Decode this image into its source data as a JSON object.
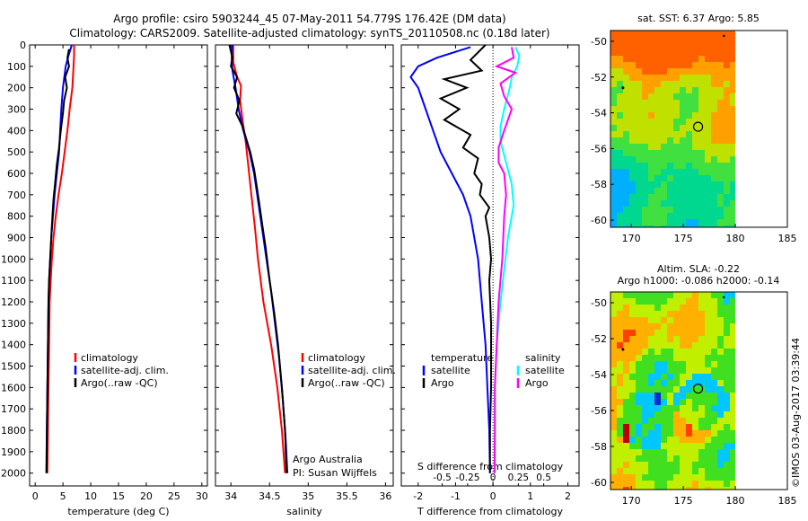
{
  "header": {
    "line1": "Argo profile: csiro 5903244_45 07-May-2011 54.779S 176.42E (DM data)",
    "line2": "Climatology: CARS2009. Satellite-adjusted climatology: synTS_20110508.nc (0.18d later)"
  },
  "credits": {
    "line1": "Argo Australia",
    "line2": "PI: Susan Wijffels",
    "stamp": "©IMOS 03-Aug-2017 03:39:44"
  },
  "chart_data": [
    {
      "type": "line",
      "xlabel": "temperature (deg C)",
      "ylabel": "",
      "xlim": [
        -1,
        31
      ],
      "ylim": [
        2060,
        0
      ],
      "y_reversed": true,
      "xticks": [
        0,
        5,
        10,
        15,
        20,
        25,
        30
      ],
      "yticks": [
        0,
        100,
        200,
        300,
        400,
        500,
        600,
        700,
        800,
        900,
        1000,
        1100,
        1200,
        1300,
        1400,
        1500,
        1600,
        1700,
        1800,
        1900,
        2000
      ],
      "legend": {
        "placement": "bottom-center",
        "entries": [
          {
            "label": "climatology",
            "color": "#ff0000"
          },
          {
            "label": "satellite-adj. clim.",
            "color": "#0000ff"
          },
          {
            "label": "Argo(..raw -QC)",
            "color": "#000000"
          }
        ]
      },
      "series": [
        {
          "color": "#ff0000",
          "points": [
            [
              7.0,
              0
            ],
            [
              7.0,
              50
            ],
            [
              6.9,
              100
            ],
            [
              6.7,
              200
            ],
            [
              6.2,
              300
            ],
            [
              5.8,
              400
            ],
            [
              5.3,
              500
            ],
            [
              4.8,
              600
            ],
            [
              4.2,
              700
            ],
            [
              3.7,
              800
            ],
            [
              3.3,
              900
            ],
            [
              3.0,
              1000
            ],
            [
              2.8,
              1100
            ],
            [
              2.6,
              1200
            ],
            [
              2.5,
              1400
            ],
            [
              2.4,
              1600
            ],
            [
              2.3,
              1800
            ],
            [
              2.2,
              2000
            ]
          ]
        },
        {
          "color": "#0000ff",
          "points": [
            [
              6.6,
              0
            ],
            [
              6.0,
              50
            ],
            [
              5.5,
              100
            ],
            [
              5.0,
              200
            ],
            [
              4.7,
              300
            ],
            [
              4.5,
              400
            ],
            [
              4.3,
              500
            ],
            [
              3.9,
              600
            ],
            [
              3.5,
              700
            ],
            [
              3.2,
              800
            ],
            [
              2.9,
              900
            ],
            [
              2.7,
              1000
            ],
            [
              2.5,
              1100
            ],
            [
              2.4,
              1200
            ],
            [
              2.3,
              1400
            ],
            [
              2.2,
              1600
            ],
            [
              2.1,
              1800
            ],
            [
              2.0,
              2000
            ]
          ]
        },
        {
          "color": "#000000",
          "points": [
            [
              6.1,
              20
            ],
            [
              5.8,
              60
            ],
            [
              6.1,
              100
            ],
            [
              5.4,
              150
            ],
            [
              5.7,
              200
            ],
            [
              5.2,
              260
            ],
            [
              5.0,
              320
            ],
            [
              4.6,
              400
            ],
            [
              4.3,
              480
            ],
            [
              3.9,
              560
            ],
            [
              3.6,
              640
            ],
            [
              3.3,
              720
            ],
            [
              3.1,
              800
            ],
            [
              2.9,
              900
            ],
            [
              2.7,
              1000
            ],
            [
              2.5,
              1100
            ],
            [
              2.4,
              1200
            ],
            [
              2.3,
              1400
            ],
            [
              2.2,
              1600
            ],
            [
              2.1,
              1800
            ],
            [
              2.05,
              2000
            ]
          ]
        }
      ]
    },
    {
      "type": "line",
      "xlabel": "salinity",
      "ylabel": "",
      "xlim": [
        33.8,
        36.1
      ],
      "ylim": [
        2060,
        0
      ],
      "y_reversed": true,
      "xticks": [
        34,
        34.5,
        35,
        35.5,
        36
      ],
      "xtick_labels": [
        "34",
        "34.5",
        "35",
        "35.5",
        "36"
      ],
      "legend": {
        "placement": "bottom-right",
        "entries": [
          {
            "label": "climatology",
            "color": "#ff0000"
          },
          {
            "label": "satellite-adj. clim.",
            "color": "#0000ff"
          },
          {
            "label": "Argo(..raw -QC)",
            "color": "#000000"
          }
        ]
      },
      "series": [
        {
          "color": "#ff0000",
          "points": [
            [
              34.03,
              0
            ],
            [
              34.03,
              80
            ],
            [
              34.08,
              150
            ],
            [
              34.13,
              190
            ],
            [
              34.12,
              260
            ],
            [
              34.15,
              350
            ],
            [
              34.19,
              450
            ],
            [
              34.22,
              550
            ],
            [
              34.25,
              650
            ],
            [
              34.28,
              750
            ],
            [
              34.31,
              850
            ],
            [
              34.35,
              1000
            ],
            [
              34.42,
              1200
            ],
            [
              34.52,
              1400
            ],
            [
              34.6,
              1600
            ],
            [
              34.66,
              1800
            ],
            [
              34.7,
              2000
            ]
          ]
        },
        {
          "color": "#0000ff",
          "points": [
            [
              34.02,
              0
            ],
            [
              34.01,
              60
            ],
            [
              34.02,
              120
            ],
            [
              34.06,
              200
            ],
            [
              34.1,
              300
            ],
            [
              34.16,
              400
            ],
            [
              34.24,
              500
            ],
            [
              34.3,
              600
            ],
            [
              34.34,
              700
            ],
            [
              34.38,
              800
            ],
            [
              34.42,
              900
            ],
            [
              34.46,
              1000
            ],
            [
              34.52,
              1150
            ],
            [
              34.57,
              1300
            ],
            [
              34.62,
              1450
            ],
            [
              34.67,
              1650
            ],
            [
              34.71,
              1850
            ],
            [
              34.73,
              2000
            ]
          ]
        },
        {
          "color": "#000000",
          "points": [
            [
              33.98,
              0
            ],
            [
              34.02,
              60
            ],
            [
              34.0,
              100
            ],
            [
              34.08,
              150
            ],
            [
              34.04,
              200
            ],
            [
              34.11,
              260
            ],
            [
              34.07,
              320
            ],
            [
              34.15,
              380
            ],
            [
              34.2,
              440
            ],
            [
              34.25,
              500
            ],
            [
              34.3,
              580
            ],
            [
              34.33,
              650
            ],
            [
              34.37,
              750
            ],
            [
              34.41,
              850
            ],
            [
              34.45,
              950
            ],
            [
              34.5,
              1100
            ],
            [
              34.56,
              1250
            ],
            [
              34.61,
              1400
            ],
            [
              34.66,
              1600
            ],
            [
              34.7,
              1800
            ],
            [
              34.72,
              2000
            ]
          ]
        }
      ]
    },
    {
      "type": "line",
      "xlabel": "T difference from climatology",
      "top_label": "S difference from climatology",
      "xlim": [
        -2.45,
        2.3
      ],
      "ylim": [
        2060,
        0
      ],
      "y_reversed": true,
      "xticks": [
        -2,
        -1,
        0,
        1,
        2
      ],
      "top_ticks": [
        -0.5,
        -0.25,
        0,
        0.25,
        0.5
      ],
      "top_tick_labels": [
        "-0.5",
        "-0.25",
        "0",
        "0.25",
        "0.5"
      ],
      "zero_line": "dotted",
      "legend": {
        "placement": "bottom",
        "groups": [
          {
            "title": "temperature",
            "entries": [
              {
                "label": "satellite",
                "color": "#0000ff"
              },
              {
                "label": "Argo",
                "color": "#000000"
              }
            ]
          },
          {
            "title": "salinity",
            "entries": [
              {
                "label": "satellite",
                "color": "#00ffff"
              },
              {
                "label": "Argo",
                "color": "#ff00ff"
              }
            ]
          }
        ]
      },
      "series": [
        {
          "color": "#0000ff",
          "points": [
            [
              -0.6,
              10
            ],
            [
              -1.5,
              60
            ],
            [
              -2.0,
              100
            ],
            [
              -2.2,
              150
            ],
            [
              -2.0,
              200
            ],
            [
              -1.8,
              300
            ],
            [
              -1.6,
              400
            ],
            [
              -1.4,
              500
            ],
            [
              -1.1,
              600
            ],
            [
              -0.8,
              700
            ],
            [
              -0.6,
              800
            ],
            [
              -0.5,
              900
            ],
            [
              -0.4,
              1000
            ],
            [
              -0.3,
              1200
            ],
            [
              -0.2,
              1400
            ],
            [
              -0.15,
              1600
            ],
            [
              -0.1,
              1800
            ],
            [
              -0.08,
              2000
            ]
          ]
        },
        {
          "color": "#000000",
          "points": [
            [
              -0.2,
              0
            ],
            [
              -0.6,
              70
            ],
            [
              -0.3,
              120
            ],
            [
              -1.3,
              160
            ],
            [
              -0.7,
              200
            ],
            [
              -1.4,
              250
            ],
            [
              -0.9,
              300
            ],
            [
              -1.3,
              350
            ],
            [
              -0.6,
              420
            ],
            [
              -0.8,
              480
            ],
            [
              -0.4,
              530
            ],
            [
              -0.5,
              600
            ],
            [
              -0.3,
              650
            ],
            [
              -0.35,
              700
            ],
            [
              -0.1,
              760
            ],
            [
              -0.2,
              800
            ],
            [
              -0.1,
              900
            ],
            [
              -0.05,
              1000
            ],
            [
              -0.1,
              1100
            ],
            [
              -0.05,
              1300
            ],
            [
              -0.05,
              1600
            ],
            [
              -0.08,
              1800
            ],
            [
              -0.08,
              2000
            ]
          ]
        },
        {
          "color": "#00ffff",
          "points": [
            [
              0.6,
              10
            ],
            [
              0.7,
              50
            ],
            [
              0.65,
              100
            ],
            [
              0.5,
              150
            ],
            [
              0.45,
              200
            ],
            [
              0.3,
              300
            ],
            [
              0.2,
              380
            ],
            [
              0.2,
              450
            ],
            [
              0.35,
              550
            ],
            [
              0.5,
              650
            ],
            [
              0.55,
              750
            ],
            [
              0.4,
              900
            ],
            [
              0.3,
              1050
            ],
            [
              0.2,
              1200
            ],
            [
              0.1,
              1400
            ],
            [
              0.05,
              1600
            ],
            [
              0.05,
              1800
            ],
            [
              0.05,
              2000
            ]
          ]
        },
        {
          "color": "#ff00ff",
          "points": [
            [
              0.5,
              10
            ],
            [
              0.55,
              60
            ],
            [
              0.1,
              100
            ],
            [
              0.6,
              130
            ],
            [
              0.2,
              180
            ],
            [
              0.3,
              240
            ],
            [
              0.5,
              300
            ],
            [
              0.4,
              350
            ],
            [
              0.3,
              400
            ],
            [
              0.15,
              480
            ],
            [
              0.15,
              550
            ],
            [
              0.3,
              600
            ],
            [
              0.35,
              700
            ],
            [
              0.3,
              800
            ],
            [
              0.25,
              1000
            ],
            [
              0.15,
              1200
            ],
            [
              0.1,
              1400
            ],
            [
              0.05,
              1600
            ],
            [
              0.05,
              1800
            ],
            [
              0.04,
              2000
            ]
          ]
        }
      ]
    },
    {
      "type": "heatmap",
      "title": "sat. SST: 6.37  Argo: 5.85",
      "xlim": [
        168,
        185
      ],
      "ylim": [
        -60.4,
        -49.4
      ],
      "xticks": [
        170,
        175,
        180,
        185
      ],
      "yticks": [
        -50,
        -52,
        -54,
        -56,
        -58,
        -60
      ],
      "profile_marker": [
        176.42,
        -54.779
      ],
      "colors": [
        "#ff6000",
        "#ffa000",
        "#c0e000",
        "#40e040",
        "#00d890",
        "#00b0ff",
        "#0040e0"
      ]
    },
    {
      "type": "heatmap",
      "title": "Altim. SLA: -0.22",
      "subtitle": "Argo h1000: -0.086  h2000: -0.14",
      "xlim": [
        168,
        185
      ],
      "ylim": [
        -60.4,
        -49.4
      ],
      "xticks": [
        170,
        175,
        180,
        185
      ],
      "yticks": [
        -50,
        -52,
        -54,
        -56,
        -58,
        -60
      ],
      "profile_marker": [
        176.42,
        -54.779
      ],
      "colors": [
        "#c00000",
        "#ff4000",
        "#ffb000",
        "#c0f000",
        "#40e020",
        "#00c8ff",
        "#0030d0"
      ]
    }
  ]
}
